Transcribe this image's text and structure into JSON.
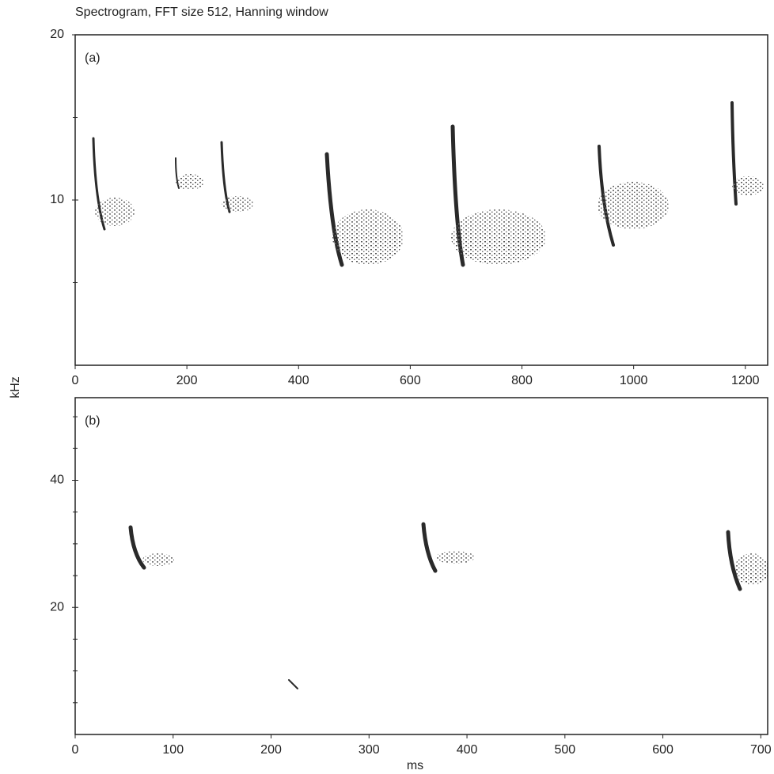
{
  "chart_data": [
    {
      "type": "spectrogram",
      "title": "Spectrogram, FFT size 512, Hanning window",
      "y_label": "kHz",
      "panel_label": "(a)",
      "xlim": [
        0,
        1240
      ],
      "xticks": [
        0,
        200,
        400,
        600,
        800,
        1000,
        1200
      ],
      "ylim": [
        0,
        20
      ],
      "yticks": [
        10,
        20
      ],
      "yminor": [
        5,
        15
      ]
    },
    {
      "type": "spectrogram",
      "x_label": "ms",
      "panel_label": "(b)",
      "xlim": [
        0,
        707
      ],
      "xticks": [
        0,
        100,
        200,
        300,
        400,
        500,
        600,
        700
      ],
      "ylim": [
        0,
        53
      ],
      "yticks": [
        20,
        40
      ],
      "yminor": [
        5,
        10,
        15,
        25,
        30,
        35,
        45,
        50
      ]
    }
  ]
}
